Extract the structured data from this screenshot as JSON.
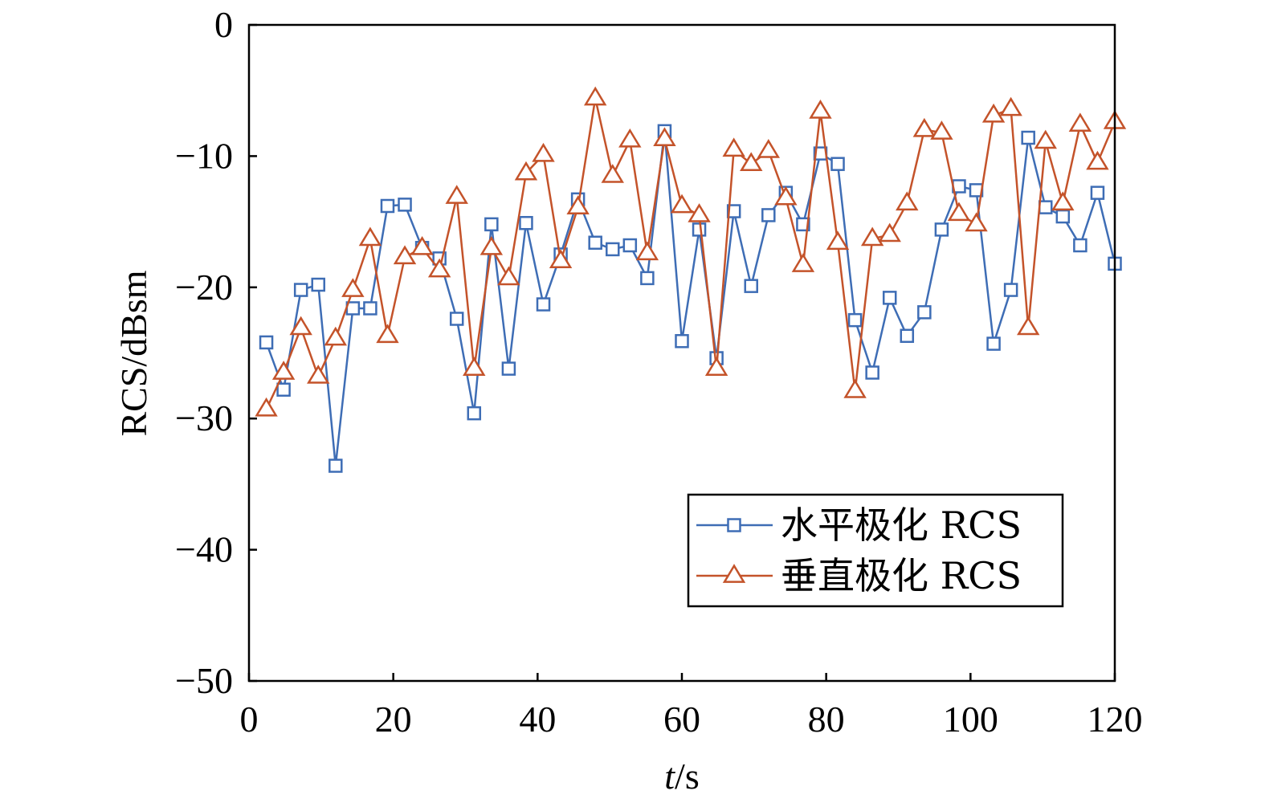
{
  "chart_data": {
    "type": "line",
    "xlabel_italic": "t",
    "xlabel_rest": "/s",
    "ylabel": "RCS/dBsm",
    "xlim": [
      0,
      120
    ],
    "ylim": [
      -50,
      0
    ],
    "xticks": [
      0,
      20,
      40,
      60,
      80,
      100,
      120
    ],
    "yticks": [
      0,
      -10,
      -20,
      -30,
      -40,
      -50
    ],
    "xtick_labels": [
      "0",
      "20",
      "40",
      "60",
      "80",
      "100",
      "120"
    ],
    "ytick_labels": [
      "0",
      "−10",
      "−20",
      "−30",
      "−40",
      "−50"
    ],
    "grid": false,
    "legend_position": "lower-right",
    "series": [
      {
        "name": "水平极化 RCS",
        "color": "#3e6db5",
        "marker": "square",
        "x": [
          2.4,
          4.8,
          7.2,
          9.6,
          12,
          14.4,
          16.8,
          19.2,
          21.6,
          24,
          26.4,
          28.8,
          31.2,
          33.6,
          36,
          38.4,
          40.8,
          43.2,
          45.6,
          48,
          50.4,
          52.8,
          55.2,
          57.6,
          60,
          62.4,
          64.8,
          67.2,
          69.6,
          72,
          74.4,
          76.8,
          79.2,
          81.6,
          84,
          86.4,
          88.8,
          91.2,
          93.6,
          96,
          98.4,
          100.8,
          103.2,
          105.6,
          108,
          110.4,
          112.8,
          115.2,
          117.6,
          120
        ],
        "y": [
          -24.2,
          -27.8,
          -20.2,
          -19.8,
          -33.6,
          -21.6,
          -21.6,
          -13.8,
          -13.7,
          -17.0,
          -17.8,
          -22.4,
          -29.6,
          -15.2,
          -26.2,
          -15.1,
          -21.3,
          -17.5,
          -13.3,
          -16.6,
          -17.1,
          -16.8,
          -19.3,
          -8.1,
          -24.1,
          -15.6,
          -25.4,
          -14.2,
          -19.9,
          -14.5,
          -12.8,
          -15.2,
          -9.8,
          -10.6,
          -22.5,
          -26.5,
          -20.8,
          -23.7,
          -21.9,
          -15.6,
          -12.3,
          -12.6,
          -24.3,
          -20.2,
          -8.6,
          -13.9,
          -14.6,
          -16.8,
          -12.8,
          -18.2
        ]
      },
      {
        "name": "垂直极化 RCS",
        "color": "#c4532a",
        "marker": "triangle",
        "x": [
          2.4,
          4.8,
          7.2,
          9.6,
          12,
          14.4,
          16.8,
          19.2,
          21.6,
          24,
          26.4,
          28.8,
          31.2,
          33.6,
          36,
          38.4,
          40.8,
          43.2,
          45.6,
          48,
          50.4,
          52.8,
          55.2,
          57.6,
          60,
          62.4,
          64.8,
          67.2,
          69.6,
          72,
          74.4,
          76.8,
          79.2,
          81.6,
          84,
          86.4,
          88.8,
          91.2,
          93.6,
          96,
          98.4,
          100.8,
          103.2,
          105.6,
          108,
          110.4,
          112.8,
          115.2,
          117.6,
          120
        ],
        "y": [
          -29.3,
          -26.5,
          -23.1,
          -26.8,
          -23.9,
          -20.2,
          -16.3,
          -23.7,
          -17.7,
          -17.0,
          -18.7,
          -13.1,
          -26.2,
          -17.0,
          -19.3,
          -11.3,
          -9.9,
          -18.0,
          -13.9,
          -5.6,
          -11.5,
          -8.8,
          -17.4,
          -8.7,
          -13.8,
          -14.5,
          -26.2,
          -9.5,
          -10.6,
          -9.6,
          -13.2,
          -18.3,
          -6.6,
          -16.6,
          -27.9,
          -16.3,
          -16.0,
          -13.6,
          -8.0,
          -8.2,
          -14.4,
          -15.2,
          -6.9,
          -6.4,
          -23.1,
          -8.9,
          -13.6,
          -7.6,
          -10.5,
          -7.4
        ]
      }
    ]
  }
}
